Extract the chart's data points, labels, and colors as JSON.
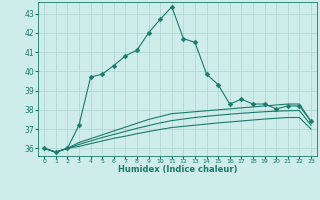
{
  "xlabel": "Humidex (Indice chaleur)",
  "x": [
    0,
    1,
    2,
    3,
    4,
    5,
    6,
    7,
    8,
    9,
    10,
    11,
    12,
    13,
    14,
    15,
    16,
    17,
    18,
    19,
    20,
    21,
    22,
    23
  ],
  "series1": [
    36.0,
    35.8,
    36.0,
    37.2,
    39.7,
    39.85,
    40.3,
    40.8,
    41.1,
    42.0,
    42.7,
    43.35,
    41.7,
    41.5,
    39.85,
    39.3,
    38.3,
    38.55,
    38.3,
    38.3,
    38.05,
    38.2,
    38.2,
    37.4
  ],
  "series2": [
    36.0,
    35.8,
    36.0,
    36.3,
    36.5,
    36.7,
    36.9,
    37.1,
    37.3,
    37.5,
    37.65,
    37.8,
    37.85,
    37.9,
    37.95,
    38.0,
    38.05,
    38.1,
    38.15,
    38.2,
    38.25,
    38.3,
    38.3,
    37.4
  ],
  "series3": [
    36.0,
    35.8,
    36.0,
    36.2,
    36.38,
    36.56,
    36.72,
    36.88,
    37.04,
    37.18,
    37.32,
    37.44,
    37.52,
    37.6,
    37.66,
    37.72,
    37.77,
    37.82,
    37.86,
    37.9,
    37.93,
    37.95,
    37.96,
    37.2
  ],
  "series4": [
    36.0,
    35.8,
    36.0,
    36.1,
    36.24,
    36.38,
    36.52,
    36.63,
    36.76,
    36.87,
    36.98,
    37.08,
    37.14,
    37.2,
    37.26,
    37.32,
    37.37,
    37.42,
    37.47,
    37.52,
    37.56,
    37.6,
    37.6,
    37.0
  ],
  "line_color": "#1a7a6e",
  "bg_color": "#ceecea",
  "grid_color": "#aed4d0",
  "ylim": [
    35.6,
    43.6
  ],
  "yticks": [
    36,
    37,
    38,
    39,
    40,
    41,
    42,
    43
  ],
  "xlim": [
    -0.5,
    23.5
  ],
  "markersize": 2.5
}
